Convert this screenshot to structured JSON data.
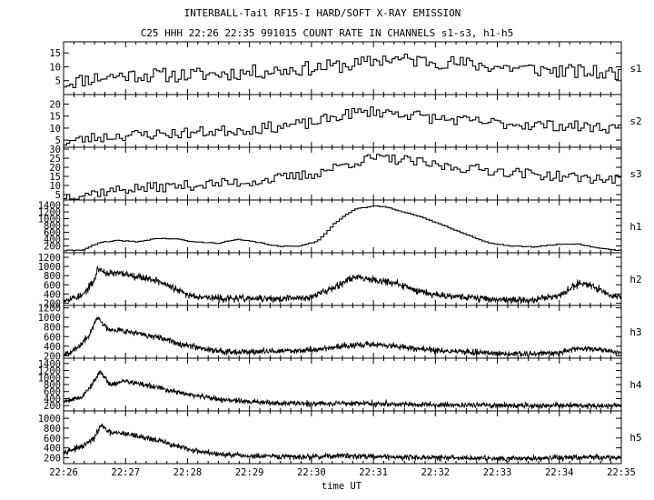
{
  "title": "INTERBALL-Tail RF15-I HARD/SOFT X-RAY EMISSION",
  "subtitle": "C25 HHH 22:26 22:35 991015  COUNT RATE IN CHANNELS s1-s3, h1-h5",
  "chart_data": {
    "type": "line",
    "xlabel": "time UT",
    "x_range": [
      "22:26",
      "22:35"
    ],
    "x_ticks": [
      "22:26",
      "22:27",
      "22:28",
      "22:29",
      "22:30",
      "22:31",
      "22:32",
      "22:33",
      "22:34",
      "22:35"
    ],
    "panels": [
      {
        "name": "s1",
        "ylim": [
          0,
          19
        ],
        "yticks": [
          5,
          10,
          15
        ],
        "step": true,
        "noise": 2.6,
        "seed": 11,
        "profile": [
          [
            0,
            4
          ],
          [
            0.5,
            6
          ],
          [
            1,
            7
          ],
          [
            2,
            7
          ],
          [
            3,
            8
          ],
          [
            4,
            9.5
          ],
          [
            4.8,
            11
          ],
          [
            5.2,
            13
          ],
          [
            5.5,
            12.5
          ],
          [
            6,
            12
          ],
          [
            6.5,
            11
          ],
          [
            7,
            10
          ],
          [
            8,
            8.5
          ],
          [
            9,
            7.5
          ]
        ]
      },
      {
        "name": "s2",
        "ylim": [
          2,
          24
        ],
        "yticks": [
          5,
          10,
          15,
          20
        ],
        "step": true,
        "noise": 2.3,
        "seed": 23,
        "profile": [
          [
            0,
            4
          ],
          [
            0.5,
            6
          ],
          [
            1,
            7
          ],
          [
            2,
            8
          ],
          [
            3,
            9.5
          ],
          [
            4,
            12
          ],
          [
            4.6,
            16
          ],
          [
            5,
            17
          ],
          [
            5.5,
            16
          ],
          [
            6,
            14
          ],
          [
            7,
            12
          ],
          [
            8,
            11
          ],
          [
            9,
            10
          ]
        ]
      },
      {
        "name": "s3",
        "ylim": [
          2,
          31
        ],
        "yticks": [
          5,
          10,
          15,
          20,
          25,
          30
        ],
        "step": true,
        "noise": 2.8,
        "seed": 37,
        "profile": [
          [
            0,
            4
          ],
          [
            0.5,
            6
          ],
          [
            1,
            8
          ],
          [
            2,
            10
          ],
          [
            3,
            12
          ],
          [
            4,
            16
          ],
          [
            4.6,
            22
          ],
          [
            5,
            25
          ],
          [
            5.5,
            24
          ],
          [
            6,
            21
          ],
          [
            7,
            18
          ],
          [
            8,
            15
          ],
          [
            9,
            13
          ]
        ]
      },
      {
        "name": "h1",
        "ylim": [
          0,
          1550
        ],
        "yticks": [
          200,
          400,
          600,
          800,
          1000,
          1200,
          1400
        ],
        "step": true,
        "noise": 12,
        "seed": 41,
        "profile": [
          [
            0,
            60
          ],
          [
            0.3,
            80
          ],
          [
            0.6,
            300
          ],
          [
            0.9,
            360
          ],
          [
            1.2,
            320
          ],
          [
            1.5,
            420
          ],
          [
            1.8,
            410
          ],
          [
            2.1,
            320
          ],
          [
            2.5,
            280
          ],
          [
            2.8,
            390
          ],
          [
            3.1,
            320
          ],
          [
            3.5,
            180
          ],
          [
            3.8,
            200
          ],
          [
            4.1,
            330
          ],
          [
            4.4,
            900
          ],
          [
            4.7,
            1280
          ],
          [
            5,
            1370
          ],
          [
            5.2,
            1350
          ],
          [
            5.6,
            1150
          ],
          [
            6,
            900
          ],
          [
            6.4,
            620
          ],
          [
            6.8,
            320
          ],
          [
            7.2,
            200
          ],
          [
            7.6,
            170
          ],
          [
            8,
            250
          ],
          [
            8.3,
            260
          ],
          [
            8.6,
            150
          ],
          [
            9,
            60
          ]
        ]
      },
      {
        "name": "h2",
        "ylim": [
          150,
          1300
        ],
        "yticks": [
          200,
          400,
          600,
          800,
          1000,
          1200
        ],
        "step": false,
        "noise": 60,
        "seed": 53,
        "profile": [
          [
            0,
            270
          ],
          [
            0.3,
            360
          ],
          [
            0.5,
            700
          ],
          [
            0.55,
            960
          ],
          [
            0.7,
            850
          ],
          [
            1,
            840
          ],
          [
            1.5,
            700
          ],
          [
            2,
            380
          ],
          [
            2.5,
            300
          ],
          [
            3,
            300
          ],
          [
            3.5,
            290
          ],
          [
            4,
            330
          ],
          [
            4.5,
            640
          ],
          [
            4.7,
            780
          ],
          [
            5,
            720
          ],
          [
            5.3,
            650
          ],
          [
            5.7,
            480
          ],
          [
            6,
            390
          ],
          [
            6.5,
            330
          ],
          [
            7,
            280
          ],
          [
            7.5,
            260
          ],
          [
            8,
            360
          ],
          [
            8.3,
            620
          ],
          [
            8.5,
            610
          ],
          [
            8.8,
            400
          ],
          [
            9,
            320
          ]
        ]
      },
      {
        "name": "h3",
        "ylim": [
          150,
          1250
        ],
        "yticks": [
          200,
          400,
          600,
          800,
          1000,
          1200
        ],
        "step": false,
        "noise": 50,
        "seed": 67,
        "profile": [
          [
            0,
            240
          ],
          [
            0.2,
            330
          ],
          [
            0.4,
            600
          ],
          [
            0.55,
            1000
          ],
          [
            0.7,
            770
          ],
          [
            1,
            720
          ],
          [
            1.5,
            580
          ],
          [
            2,
            420
          ],
          [
            2.5,
            300
          ],
          [
            3,
            280
          ],
          [
            3.5,
            300
          ],
          [
            4,
            320
          ],
          [
            4.5,
            400
          ],
          [
            5,
            440
          ],
          [
            5.5,
            380
          ],
          [
            6,
            310
          ],
          [
            6.5,
            280
          ],
          [
            7,
            250
          ],
          [
            7.5,
            230
          ],
          [
            8,
            270
          ],
          [
            8.3,
            360
          ],
          [
            8.6,
            340
          ],
          [
            9,
            270
          ]
        ]
      },
      {
        "name": "h4",
        "ylim": [
          50,
          1550
        ],
        "yticks": [
          200,
          400,
          600,
          800,
          1000,
          1200,
          1400
        ],
        "step": false,
        "noise": 60,
        "seed": 79,
        "profile": [
          [
            0,
            330
          ],
          [
            0.3,
            450
          ],
          [
            0.5,
            900
          ],
          [
            0.6,
            1180
          ],
          [
            0.75,
            800
          ],
          [
            1,
            900
          ],
          [
            1.5,
            720
          ],
          [
            2,
            520
          ],
          [
            2.5,
            380
          ],
          [
            3,
            310
          ],
          [
            3.5,
            270
          ],
          [
            4,
            260
          ],
          [
            4.5,
            270
          ],
          [
            5,
            260
          ],
          [
            5.5,
            240
          ],
          [
            6,
            220
          ],
          [
            6.5,
            220
          ],
          [
            7,
            210
          ],
          [
            7.5,
            200
          ],
          [
            8,
            210
          ],
          [
            8.5,
            200
          ],
          [
            9,
            190
          ]
        ]
      },
      {
        "name": "h5",
        "ylim": [
          80,
          1150
        ],
        "yticks": [
          200,
          400,
          600,
          800,
          1000
        ],
        "step": false,
        "noise": 45,
        "seed": 97,
        "profile": [
          [
            0,
            320
          ],
          [
            0.3,
            420
          ],
          [
            0.5,
            600
          ],
          [
            0.6,
            860
          ],
          [
            0.75,
            700
          ],
          [
            1,
            690
          ],
          [
            1.5,
            560
          ],
          [
            2,
            370
          ],
          [
            2.5,
            270
          ],
          [
            3,
            230
          ],
          [
            3.5,
            220
          ],
          [
            4,
            220
          ],
          [
            4.5,
            240
          ],
          [
            5,
            230
          ],
          [
            5.5,
            210
          ],
          [
            6,
            200
          ],
          [
            6.5,
            195
          ],
          [
            7,
            190
          ],
          [
            7.5,
            185
          ],
          [
            8,
            200
          ],
          [
            8.5,
            210
          ],
          [
            9,
            200
          ]
        ]
      }
    ]
  }
}
